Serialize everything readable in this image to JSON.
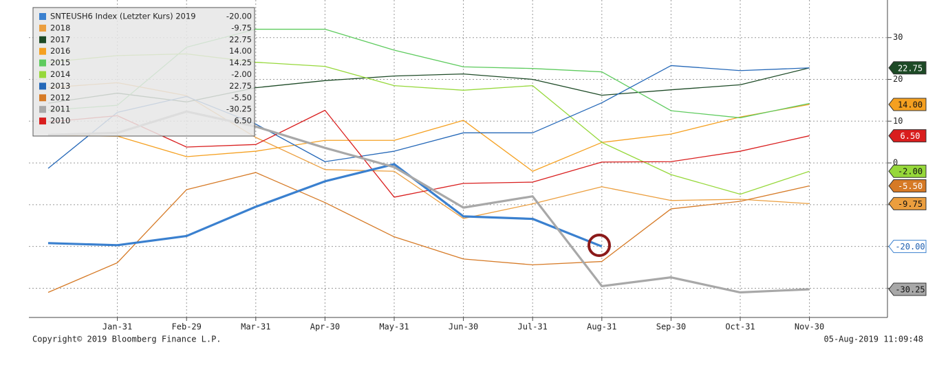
{
  "chart_data": {
    "type": "line",
    "categories": [
      null,
      "Jan-31",
      "Feb-29",
      "Mar-31",
      "Apr-30",
      "May-31",
      "Jun-30",
      "Jul-31",
      "Aug-31",
      "Sep-30",
      "Oct-31",
      "Nov-30"
    ],
    "ylim": [
      -37,
      39
    ],
    "yticks": [
      -30,
      -20,
      -10,
      0,
      10,
      20,
      30
    ],
    "grid": true,
    "series": [
      {
        "name": "SNTEUSH6 Index (Letzter Kurs) 2019",
        "color": "#3a80cf",
        "width": 3.2,
        "tag": true,
        "values": [
          -19.2,
          -19.7,
          -17.5,
          -10.5,
          -4.4,
          -0.3,
          -12.8,
          -13.4,
          -20,
          null,
          null,
          null
        ],
        "value_labels": [
          null,
          null,
          null,
          null,
          null,
          null,
          null,
          null,
          "-20.00",
          null,
          null,
          null
        ]
      },
      {
        "name": "2018",
        "color": "#eb9e3e",
        "width": 1.3,
        "tag": true,
        "values": [
          18.0,
          19.2,
          16.1,
          6.1,
          -1.6,
          -2.0,
          -13.3,
          -9.8,
          -5.7,
          -9.0,
          -8.7,
          -9.75
        ],
        "value_labels": [
          null,
          null,
          null,
          null,
          null,
          null,
          null,
          null,
          null,
          null,
          null,
          "-9.75"
        ]
      },
      {
        "name": "2017",
        "color": "#1d4a26",
        "width": 1.3,
        "tag": true,
        "values": [
          14.3,
          16.7,
          14.6,
          18.0,
          19.7,
          20.8,
          21.3,
          20.0,
          16.2,
          17.5,
          18.7,
          22.75
        ],
        "value_labels": [
          null,
          null,
          null,
          null,
          null,
          null,
          null,
          null,
          null,
          null,
          null,
          "22.75"
        ]
      },
      {
        "name": "2016",
        "color": "#f5a020",
        "width": 1.3,
        "tag": true,
        "values": [
          6.6,
          6.4,
          1.5,
          2.8,
          5.4,
          5.4,
          10.2,
          -2.0,
          4.9,
          6.9,
          11.0,
          14
        ],
        "value_labels": [
          null,
          null,
          null,
          null,
          null,
          null,
          null,
          null,
          null,
          null,
          null,
          "14.00"
        ]
      },
      {
        "name": "2015",
        "color": "#5ecb5e",
        "width": 1.3,
        "tag": false,
        "values": [
          12.6,
          13.8,
          27.7,
          32.0,
          32.0,
          27.0,
          23.0,
          22.6,
          21.8,
          12.5,
          10.8,
          14.25
        ],
        "value_labels": [
          null,
          null,
          null,
          null,
          null,
          null,
          null,
          null,
          null,
          null,
          null,
          "14.25"
        ]
      },
      {
        "name": "2014",
        "color": "#96d83a",
        "width": 1.3,
        "tag": true,
        "values": [
          24.1,
          25.7,
          26.1,
          24.1,
          23.1,
          18.5,
          17.4,
          18.5,
          4.9,
          -2.8,
          -7.5,
          -2
        ],
        "value_labels": [
          null,
          null,
          null,
          null,
          null,
          null,
          null,
          null,
          null,
          null,
          null,
          "-2.00"
        ]
      },
      {
        "name": "2013",
        "color": "#2568b8",
        "width": 1.3,
        "tag": false,
        "values": [
          -1.3,
          12.1,
          15.9,
          9.3,
          0.3,
          2.8,
          7.2,
          7.2,
          14.4,
          23.3,
          22.1,
          22.75
        ],
        "value_labels": [
          null,
          null,
          null,
          null,
          null,
          null,
          null,
          null,
          null,
          null,
          null,
          "22.75"
        ]
      },
      {
        "name": "2012",
        "color": "#d67a26",
        "width": 1.3,
        "tag": true,
        "values": [
          -31.0,
          -23.9,
          -6.4,
          -2.3,
          -9.5,
          -17.7,
          -23.0,
          -24.4,
          -23.6,
          -11.0,
          -9.2,
          -5.5
        ],
        "value_labels": [
          null,
          null,
          null,
          null,
          null,
          null,
          null,
          null,
          null,
          null,
          null,
          "-5.50"
        ]
      },
      {
        "name": "2011",
        "color": "#a8a8a8",
        "width": 3.2,
        "tag": true,
        "values": [
          6.7,
          7.2,
          12.3,
          8.7,
          3.6,
          -1.0,
          -10.7,
          -8.0,
          -29.5,
          -27.4,
          -31.0,
          -30.25
        ],
        "value_labels": [
          null,
          null,
          null,
          null,
          null,
          null,
          null,
          null,
          null,
          null,
          null,
          "-30.25"
        ]
      },
      {
        "name": "2010",
        "color": "#d91e1e",
        "width": 1.3,
        "tag": true,
        "values": [
          9.8,
          11.3,
          3.8,
          4.4,
          12.6,
          -8.2,
          -4.9,
          -4.6,
          0.2,
          0.3,
          2.8,
          6.5
        ],
        "value_labels": [
          null,
          null,
          null,
          null,
          null,
          null,
          null,
          null,
          null,
          null,
          null,
          "6.50"
        ]
      }
    ],
    "copyright": "Copyright© 2019 Bloomberg Finance L.P.",
    "timestamp": "05-Aug-2019 11:09:48"
  }
}
